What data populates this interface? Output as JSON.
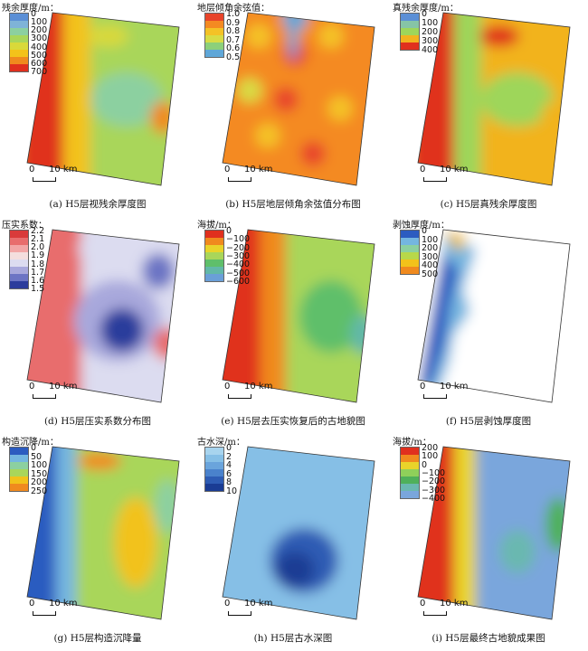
{
  "panels": [
    {
      "caption": "(a) H5层视残余厚度图",
      "legend_title": "残余厚度/m：",
      "ticks": [
        "0",
        "100",
        "200",
        "300",
        "400",
        "500",
        "600",
        "700"
      ],
      "colors": [
        "#5b8fd6",
        "#7fb3d8",
        "#8cd0a0",
        "#a9d65a",
        "#d9d93a",
        "#f3c21a",
        "#f08a1e",
        "#e0301e"
      ],
      "scale_labels": [
        "0",
        "10 km"
      ],
      "palette": "thickness"
    },
    {
      "caption": "(b) H5层地层倾角余弦值分布图",
      "legend_title": "地层倾角余弦值：",
      "ticks": [
        "1.0",
        "0.9",
        "0.8",
        "0.7",
        "0.6",
        "0.5"
      ],
      "colors": [
        "#e8442a",
        "#f48a22",
        "#f4c226",
        "#d8dc45",
        "#8cd07a",
        "#5fa7d8"
      ],
      "scale_labels": [
        "0",
        "10 km"
      ],
      "palette": "cosine"
    },
    {
      "caption": "(c) H5层真残余厚度图",
      "legend_title": "真残余厚度/m：",
      "ticks": [
        "0",
        "100",
        "200",
        "300",
        "400"
      ],
      "colors": [
        "#5b8fd6",
        "#86c4a6",
        "#9ed65a",
        "#f2b31e",
        "#e0301e"
      ],
      "scale_labels": [
        "0",
        "10 km"
      ],
      "palette": "thickness"
    },
    {
      "caption": "(d) H5层压实系数分布图",
      "legend_title": "压实系数：",
      "ticks": [
        "2.2",
        "2.1",
        "2.0",
        "1.9",
        "1.8",
        "1.7",
        "1.6",
        "1.5"
      ],
      "colors": [
        "#d93a3a",
        "#e86d6d",
        "#f2a6a6",
        "#f4dede",
        "#dcdcf0",
        "#a8a8dc",
        "#6c74c4",
        "#2c3c9c"
      ],
      "scale_labels": [
        "0",
        "10 km"
      ],
      "palette": "compaction"
    },
    {
      "caption": "(e) H5层去压实恢复后的古地貌图",
      "legend_title": "海拔/m：",
      "ticks": [
        "0",
        "−100",
        "−200",
        "−300",
        "−400",
        "−500",
        "−600"
      ],
      "colors": [
        "#e0301e",
        "#f08a1e",
        "#e9d42a",
        "#a9d65a",
        "#5fbf6a",
        "#62b8a8",
        "#6a9fd8"
      ],
      "scale_labels": [
        "0",
        "10 km"
      ],
      "palette": "elevation"
    },
    {
      "caption": "(f) H5层剥蚀厚度图",
      "legend_title": "剥蚀厚度/m：",
      "ticks": [
        "0",
        "100",
        "200",
        "300",
        "400",
        "500"
      ],
      "colors": [
        "#2c5cc0",
        "#74b6e0",
        "#8cd0a0",
        "#b8d84a",
        "#f2c21a",
        "#f08a1e"
      ],
      "scale_labels": [
        "0",
        "10 km"
      ],
      "palette": "erosion"
    },
    {
      "caption": "(g) H5层构造沉降量",
      "legend_title": "构造沉降/m：",
      "ticks": [
        "0",
        "50",
        "100",
        "150",
        "200",
        "250"
      ],
      "colors": [
        "#2c5cc0",
        "#74b6e0",
        "#8cd0a0",
        "#a9d65a",
        "#f2c21a",
        "#f08a1e"
      ],
      "scale_labels": [
        "0",
        "10 km"
      ],
      "palette": "subsidence"
    },
    {
      "caption": "(h) H5层古水深图",
      "legend_title": "古水深/m：",
      "ticks": [
        "0",
        "2",
        "4",
        "6",
        "8",
        "10"
      ],
      "colors": [
        "#a8d4ee",
        "#86bfe6",
        "#6aa4dc",
        "#4a82cc",
        "#2e5cb4",
        "#1a3c94"
      ],
      "scale_labels": [
        "0",
        "10 km"
      ],
      "palette": "water"
    },
    {
      "caption": "(i) H5层最终古地貌成果图",
      "legend_title": "海拔/m：",
      "ticks": [
        "200",
        "100",
        "0",
        "−100",
        "−200",
        "−300",
        "−400"
      ],
      "colors": [
        "#e0301e",
        "#f08a1e",
        "#e9d42a",
        "#8fd05a",
        "#4fb05a",
        "#6ab8b0",
        "#7aa6dc"
      ],
      "scale_labels": [
        "0",
        "10 km"
      ],
      "palette": "final"
    }
  ]
}
